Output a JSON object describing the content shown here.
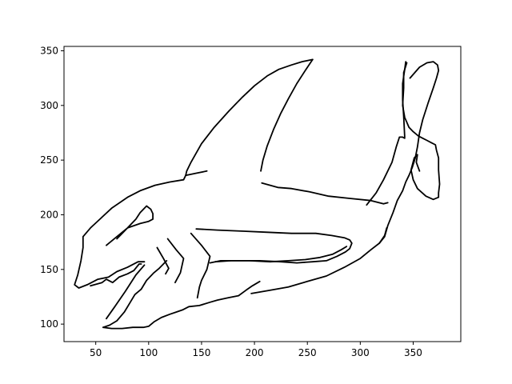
{
  "chart_data": {
    "type": "line",
    "title": "",
    "xlabel": "",
    "ylabel": "",
    "xlim": [
      20,
      395
    ],
    "ylim": [
      84,
      354
    ],
    "xticks": [
      50,
      100,
      150,
      200,
      250,
      300,
      350
    ],
    "yticks": [
      100,
      150,
      200,
      250,
      300,
      350
    ],
    "grid": false,
    "legend": "none",
    "line_color": "#000000",
    "series": [
      {
        "points": [
          [
            255,
            342
          ],
          [
            245,
            340
          ],
          [
            235,
            337
          ],
          [
            223,
            333
          ],
          [
            212,
            327
          ],
          [
            200,
            318
          ],
          [
            188,
            307
          ],
          [
            176,
            295
          ],
          [
            162,
            280
          ],
          [
            150,
            265
          ],
          [
            140,
            248
          ],
          [
            136,
            240
          ],
          [
            135,
            236
          ],
          [
            133,
            232
          ],
          [
            120,
            230
          ],
          [
            106,
            227
          ],
          [
            92,
            222
          ],
          [
            80,
            216
          ],
          [
            65,
            206
          ],
          [
            55,
            197
          ],
          [
            45,
            188
          ],
          [
            38,
            180
          ],
          [
            38,
            170
          ],
          [
            36,
            158
          ],
          [
            33,
            145
          ],
          [
            30,
            136
          ],
          [
            34,
            133
          ],
          [
            42,
            136
          ],
          [
            52,
            141
          ],
          [
            62,
            143
          ],
          [
            70,
            148
          ],
          [
            80,
            152
          ],
          [
            90,
            157
          ],
          [
            96,
            157
          ]
        ]
      },
      {
        "points": [
          [
            255,
            342
          ],
          [
            248,
            332
          ],
          [
            240,
            320
          ],
          [
            232,
            306
          ],
          [
            225,
            293
          ],
          [
            218,
            278
          ],
          [
            212,
            263
          ],
          [
            208,
            250
          ],
          [
            206,
            240
          ]
        ]
      },
      {
        "points": [
          [
            135,
            236
          ],
          [
            145,
            238
          ],
          [
            155,
            240
          ]
        ]
      },
      {
        "points": [
          [
            57,
            97
          ],
          [
            65,
            96
          ],
          [
            75,
            96
          ],
          [
            85,
            97
          ],
          [
            95,
            97
          ],
          [
            100,
            98
          ],
          [
            105,
            102
          ],
          [
            112,
            106
          ],
          [
            120,
            109
          ],
          [
            126,
            111
          ],
          [
            132,
            113
          ],
          [
            138,
            116
          ],
          [
            148,
            117
          ],
          [
            158,
            120
          ],
          [
            165,
            122
          ],
          [
            175,
            124
          ],
          [
            185,
            126
          ],
          [
            192,
            131
          ],
          [
            198,
            135
          ],
          [
            205,
            139
          ]
        ]
      },
      {
        "points": [
          [
            57,
            97
          ],
          [
            63,
            99
          ],
          [
            70,
            103
          ],
          [
            77,
            111
          ],
          [
            82,
            119
          ],
          [
            87,
            127
          ],
          [
            93,
            132
          ],
          [
            98,
            140
          ],
          [
            105,
            147
          ],
          [
            110,
            151
          ],
          [
            117,
            158
          ]
        ]
      },
      {
        "points": [
          [
            60,
            105
          ],
          [
            68,
            116
          ],
          [
            78,
            130
          ],
          [
            88,
            145
          ],
          [
            96,
            154
          ]
        ]
      },
      {
        "points": [
          [
            45,
            135
          ],
          [
            56,
            138
          ],
          [
            60,
            141
          ],
          [
            66,
            138
          ],
          [
            72,
            143
          ],
          [
            80,
            146
          ],
          [
            86,
            149
          ],
          [
            91,
            155
          ],
          [
            93,
            155
          ]
        ]
      },
      {
        "points": [
          [
            60,
            172
          ],
          [
            70,
            180
          ],
          [
            80,
            188
          ],
          [
            88,
            196
          ],
          [
            92,
            202
          ],
          [
            95,
            205
          ],
          [
            98,
            208
          ],
          [
            102,
            205
          ],
          [
            104,
            201
          ],
          [
            104,
            196
          ],
          [
            100,
            194
          ],
          [
            92,
            192
          ],
          [
            80,
            188
          ],
          [
            74,
            182
          ],
          [
            70,
            178
          ]
        ]
      },
      {
        "points": [
          [
            108,
            170
          ],
          [
            114,
            160
          ],
          [
            119,
            151
          ],
          [
            116,
            146
          ]
        ]
      },
      {
        "points": [
          [
            118,
            178
          ],
          [
            126,
            168
          ],
          [
            133,
            160
          ],
          [
            130,
            147
          ],
          [
            125,
            138
          ]
        ]
      },
      {
        "points": [
          [
            140,
            183
          ],
          [
            150,
            172
          ],
          [
            158,
            162
          ],
          [
            155,
            150
          ],
          [
            150,
            140
          ],
          [
            148,
            134
          ],
          [
            146,
            124
          ]
        ]
      },
      {
        "points": [
          [
            145,
            187
          ],
          [
            165,
            186
          ],
          [
            190,
            185
          ],
          [
            212,
            184
          ],
          [
            235,
            183
          ],
          [
            258,
            183
          ],
          [
            273,
            181
          ],
          [
            285,
            179
          ],
          [
            290,
            177
          ],
          [
            292,
            174
          ],
          [
            290,
            169
          ],
          [
            286,
            166
          ],
          [
            278,
            162
          ],
          [
            268,
            158
          ],
          [
            255,
            157
          ],
          [
            240,
            156
          ],
          [
            225,
            157
          ],
          [
            205,
            158
          ],
          [
            185,
            158
          ],
          [
            168,
            158
          ],
          [
            158,
            156
          ]
        ]
      },
      {
        "points": [
          [
            163,
            157
          ],
          [
            178,
            158
          ],
          [
            195,
            158
          ],
          [
            215,
            157
          ],
          [
            232,
            158
          ],
          [
            248,
            159
          ],
          [
            262,
            161
          ],
          [
            274,
            164
          ],
          [
            282,
            168
          ],
          [
            287,
            171
          ]
        ]
      },
      {
        "points": [
          [
            207,
            229
          ],
          [
            222,
            225
          ],
          [
            235,
            224
          ],
          [
            252,
            221
          ],
          [
            270,
            217
          ],
          [
            290,
            215
          ],
          [
            310,
            213
          ],
          [
            322,
            210
          ],
          [
            326,
            211
          ]
        ]
      },
      {
        "points": [
          [
            197,
            128
          ],
          [
            215,
            131
          ],
          [
            232,
            134
          ],
          [
            250,
            139
          ],
          [
            268,
            144
          ],
          [
            285,
            152
          ],
          [
            300,
            160
          ],
          [
            310,
            168
          ],
          [
            318,
            174
          ],
          [
            323,
            181
          ],
          [
            325,
            188
          ]
        ]
      },
      {
        "points": [
          [
            306,
            209
          ],
          [
            315,
            220
          ],
          [
            322,
            232
          ],
          [
            330,
            248
          ],
          [
            334,
            262
          ],
          [
            337,
            271
          ],
          [
            340,
            271
          ],
          [
            342,
            270
          ]
        ]
      },
      {
        "points": [
          [
            318,
            174
          ],
          [
            323,
            180
          ],
          [
            326,
            190
          ],
          [
            331,
            202
          ],
          [
            335,
            213
          ],
          [
            340,
            222
          ],
          [
            343,
            230
          ],
          [
            346,
            236
          ],
          [
            349,
            243
          ],
          [
            352,
            252
          ],
          [
            354,
            262
          ],
          [
            356,
            275
          ],
          [
            359,
            287
          ],
          [
            364,
            302
          ],
          [
            369,
            316
          ],
          [
            372,
            325
          ],
          [
            374,
            332
          ],
          [
            373,
            337
          ],
          [
            369,
            340
          ],
          [
            363,
            339
          ],
          [
            356,
            335
          ],
          [
            347,
            325
          ]
        ]
      },
      {
        "points": [
          [
            344,
            339
          ],
          [
            341,
            330
          ],
          [
            341,
            316
          ],
          [
            340,
            300
          ],
          [
            342,
            289
          ],
          [
            346,
            280
          ],
          [
            350,
            276
          ],
          [
            355,
            272
          ],
          [
            359,
            270
          ],
          [
            363,
            268
          ],
          [
            367,
            266
          ],
          [
            371,
            264
          ],
          [
            372,
            259
          ],
          [
            374,
            252
          ],
          [
            374,
            241
          ],
          [
            375,
            228
          ],
          [
            374,
            220
          ],
          [
            374,
            216
          ],
          [
            369,
            214
          ],
          [
            362,
            217
          ],
          [
            354,
            224
          ],
          [
            350,
            232
          ],
          [
            348,
            241
          ],
          [
            351,
            252
          ],
          [
            354,
            255
          ],
          [
            353,
            248
          ],
          [
            356,
            240
          ]
        ]
      },
      {
        "points": [
          [
            342,
            271
          ],
          [
            341,
            290
          ],
          [
            340,
            305
          ],
          [
            340,
            320
          ],
          [
            342,
            333
          ],
          [
            343,
            340
          ]
        ]
      }
    ]
  }
}
